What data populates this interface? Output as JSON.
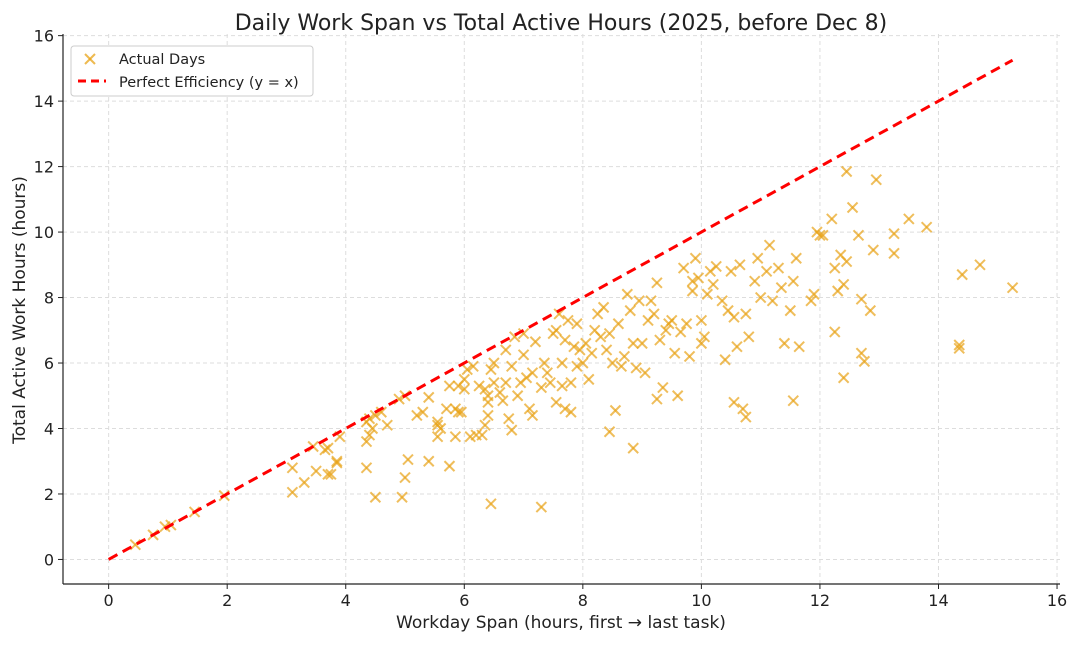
{
  "chart_data": {
    "type": "scatter",
    "title": "Daily Work Span vs Total Active Hours (2025, before Dec 8)",
    "xlabel": "Workday Span (hours, first → last task)",
    "ylabel": "Total Active Work Hours (hours)",
    "xlim": [
      -0.77,
      16.05
    ],
    "ylim": [
      -0.75,
      16.05
    ],
    "xticks": [
      0,
      2,
      4,
      6,
      8,
      10,
      12,
      14,
      16
    ],
    "yticks": [
      0,
      2,
      4,
      6,
      8,
      10,
      12,
      14,
      16
    ],
    "grid": true,
    "legend": "top-left",
    "series": [
      {
        "name": "Actual Days",
        "marker": "x",
        "color": "#E8A317",
        "points": [
          [
            0.45,
            0.45
          ],
          [
            0.75,
            0.75
          ],
          [
            0.95,
            1.0
          ],
          [
            1.05,
            1.05
          ],
          [
            1.45,
            1.45
          ],
          [
            1.95,
            1.95
          ],
          [
            3.1,
            2.8
          ],
          [
            3.1,
            2.05
          ],
          [
            3.3,
            2.35
          ],
          [
            3.45,
            3.45
          ],
          [
            3.5,
            2.7
          ],
          [
            3.65,
            3.35
          ],
          [
            3.7,
            3.4
          ],
          [
            3.7,
            2.6
          ],
          [
            3.75,
            2.6
          ],
          [
            3.85,
            3.0
          ],
          [
            3.85,
            2.95
          ],
          [
            3.9,
            3.75
          ],
          [
            4.35,
            2.8
          ],
          [
            4.35,
            3.6
          ],
          [
            4.4,
            3.8
          ],
          [
            4.35,
            4.2
          ],
          [
            4.4,
            4.3
          ],
          [
            4.45,
            4.0
          ],
          [
            4.5,
            1.9
          ],
          [
            4.5,
            4.4
          ],
          [
            4.6,
            4.5
          ],
          [
            4.7,
            4.1
          ],
          [
            4.9,
            4.9
          ],
          [
            4.95,
            1.9
          ],
          [
            5.0,
            2.5
          ],
          [
            5.0,
            5.0
          ],
          [
            5.05,
            3.05
          ],
          [
            5.2,
            4.4
          ],
          [
            5.3,
            4.5
          ],
          [
            5.4,
            3.0
          ],
          [
            5.4,
            4.95
          ],
          [
            5.55,
            3.75
          ],
          [
            5.55,
            4.1
          ],
          [
            5.55,
            4.2
          ],
          [
            5.6,
            4.0
          ],
          [
            5.7,
            4.6
          ],
          [
            5.75,
            5.3
          ],
          [
            5.75,
            2.85
          ],
          [
            5.85,
            4.6
          ],
          [
            5.85,
            3.75
          ],
          [
            5.9,
            5.3
          ],
          [
            5.9,
            4.5
          ],
          [
            5.95,
            4.5
          ],
          [
            6.0,
            5.2
          ],
          [
            6.0,
            5.5
          ],
          [
            6.05,
            5.8
          ],
          [
            6.1,
            3.75
          ],
          [
            6.15,
            5.9
          ],
          [
            6.2,
            3.8
          ],
          [
            6.25,
            5.3
          ],
          [
            6.3,
            3.8
          ],
          [
            6.35,
            4.1
          ],
          [
            6.35,
            5.2
          ],
          [
            6.4,
            4.8
          ],
          [
            6.4,
            5.0
          ],
          [
            6.4,
            4.4
          ],
          [
            6.45,
            5.8
          ],
          [
            6.45,
            1.7
          ],
          [
            6.5,
            5.4
          ],
          [
            6.5,
            6.0
          ],
          [
            6.6,
            5.1
          ],
          [
            6.65,
            4.85
          ],
          [
            6.7,
            6.4
          ],
          [
            6.7,
            5.4
          ],
          [
            6.75,
            4.3
          ],
          [
            6.8,
            3.95
          ],
          [
            6.8,
            5.9
          ],
          [
            6.85,
            6.8
          ],
          [
            6.9,
            5.0
          ],
          [
            6.95,
            5.4
          ],
          [
            7.0,
            6.9
          ],
          [
            7.0,
            6.25
          ],
          [
            7.05,
            5.55
          ],
          [
            7.1,
            4.6
          ],
          [
            7.15,
            4.4
          ],
          [
            7.15,
            5.7
          ],
          [
            7.2,
            6.65
          ],
          [
            7.3,
            1.6
          ],
          [
            7.3,
            5.25
          ],
          [
            7.35,
            6.0
          ],
          [
            7.4,
            5.7
          ],
          [
            7.45,
            5.4
          ],
          [
            7.5,
            6.9
          ],
          [
            7.55,
            4.8
          ],
          [
            7.55,
            7.0
          ],
          [
            7.6,
            7.5
          ],
          [
            7.65,
            6.0
          ],
          [
            7.65,
            5.3
          ],
          [
            7.7,
            4.6
          ],
          [
            7.7,
            6.7
          ],
          [
            7.75,
            7.3
          ],
          [
            7.8,
            4.5
          ],
          [
            7.8,
            5.4
          ],
          [
            7.85,
            6.5
          ],
          [
            7.9,
            7.2
          ],
          [
            7.9,
            5.9
          ],
          [
            7.95,
            6.4
          ],
          [
            8.0,
            6.0
          ],
          [
            8.05,
            6.6
          ],
          [
            8.1,
            5.5
          ],
          [
            8.15,
            6.3
          ],
          [
            8.2,
            7.0
          ],
          [
            8.25,
            7.5
          ],
          [
            8.3,
            6.8
          ],
          [
            8.35,
            7.7
          ],
          [
            8.4,
            6.4
          ],
          [
            8.45,
            3.9
          ],
          [
            8.45,
            6.9
          ],
          [
            8.5,
            6.0
          ],
          [
            8.55,
            4.55
          ],
          [
            8.6,
            7.2
          ],
          [
            8.65,
            5.9
          ],
          [
            8.7,
            6.2
          ],
          [
            8.75,
            8.1
          ],
          [
            8.8,
            7.6
          ],
          [
            8.85,
            3.4
          ],
          [
            8.85,
            6.6
          ],
          [
            8.9,
            5.85
          ],
          [
            8.95,
            7.9
          ],
          [
            9.0,
            6.6
          ],
          [
            9.05,
            5.7
          ],
          [
            9.1,
            7.3
          ],
          [
            9.15,
            7.9
          ],
          [
            9.2,
            7.5
          ],
          [
            9.25,
            8.45
          ],
          [
            9.25,
            4.9
          ],
          [
            9.3,
            6.7
          ],
          [
            9.35,
            5.25
          ],
          [
            9.4,
            7.0
          ],
          [
            9.45,
            7.2
          ],
          [
            9.5,
            7.3
          ],
          [
            9.55,
            6.3
          ],
          [
            9.6,
            5.0
          ],
          [
            9.65,
            6.95
          ],
          [
            9.7,
            8.9
          ],
          [
            9.75,
            7.2
          ],
          [
            9.8,
            6.2
          ],
          [
            9.85,
            8.5
          ],
          [
            9.85,
            8.2
          ],
          [
            9.9,
            9.2
          ],
          [
            9.95,
            8.6
          ],
          [
            10.0,
            6.6
          ],
          [
            10.0,
            7.3
          ],
          [
            10.05,
            6.8
          ],
          [
            10.1,
            8.1
          ],
          [
            10.15,
            8.8
          ],
          [
            10.2,
            8.4
          ],
          [
            10.25,
            8.95
          ],
          [
            10.35,
            7.9
          ],
          [
            10.4,
            6.1
          ],
          [
            10.45,
            7.6
          ],
          [
            10.5,
            8.8
          ],
          [
            10.55,
            7.4
          ],
          [
            10.55,
            4.8
          ],
          [
            10.6,
            6.5
          ],
          [
            10.65,
            9.0
          ],
          [
            10.7,
            4.6
          ],
          [
            10.75,
            4.35
          ],
          [
            10.75,
            7.5
          ],
          [
            10.8,
            6.8
          ],
          [
            10.9,
            8.5
          ],
          [
            10.95,
            9.2
          ],
          [
            11.0,
            8.0
          ],
          [
            11.1,
            8.8
          ],
          [
            11.15,
            9.6
          ],
          [
            11.2,
            7.9
          ],
          [
            11.3,
            8.9
          ],
          [
            11.35,
            8.3
          ],
          [
            11.4,
            6.6
          ],
          [
            11.5,
            7.6
          ],
          [
            11.55,
            8.5
          ],
          [
            11.55,
            4.85
          ],
          [
            11.6,
            9.2
          ],
          [
            11.65,
            6.5
          ],
          [
            11.85,
            7.9
          ],
          [
            11.9,
            8.1
          ],
          [
            11.95,
            10.0
          ],
          [
            12.0,
            9.9
          ],
          [
            12.05,
            9.9
          ],
          [
            12.2,
            10.4
          ],
          [
            12.25,
            6.95
          ],
          [
            12.25,
            8.9
          ],
          [
            12.3,
            8.2
          ],
          [
            12.35,
            9.3
          ],
          [
            12.4,
            8.4
          ],
          [
            12.4,
            5.55
          ],
          [
            12.45,
            9.1
          ],
          [
            12.45,
            11.85
          ],
          [
            12.55,
            10.75
          ],
          [
            12.65,
            9.9
          ],
          [
            12.7,
            7.95
          ],
          [
            12.7,
            6.3
          ],
          [
            12.75,
            6.05
          ],
          [
            12.85,
            7.6
          ],
          [
            12.9,
            9.45
          ],
          [
            12.95,
            11.6
          ],
          [
            13.25,
            9.95
          ],
          [
            13.25,
            9.35
          ],
          [
            13.5,
            10.4
          ],
          [
            13.8,
            10.15
          ],
          [
            14.35,
            6.45
          ],
          [
            14.35,
            6.55
          ],
          [
            14.4,
            8.7
          ],
          [
            14.7,
            9.0
          ],
          [
            15.25,
            8.3
          ]
        ]
      },
      {
        "name": "Perfect Efficiency (y = x)",
        "type": "line",
        "style": "dashed",
        "color": "#FF0000",
        "x": [
          0,
          15.25
        ],
        "y": [
          0,
          15.25
        ]
      }
    ]
  }
}
